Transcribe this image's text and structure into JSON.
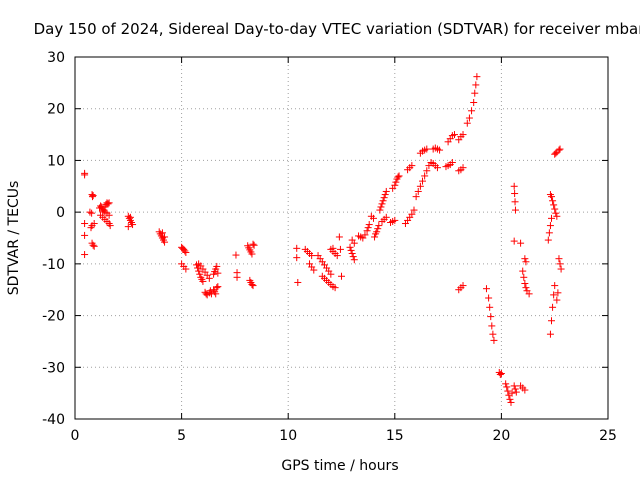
{
  "chart_data": {
    "type": "scatter",
    "title": "Day 150 of 2024, Sidereal Day-to-day VTEC variation (SDTVAR) for receiver mbar",
    "xlabel": "GPS time / hours",
    "ylabel": "SDTVAR / TECUs",
    "xlim": [
      0,
      25
    ],
    "ylim": [
      -40,
      30
    ],
    "xticks": [
      0,
      5,
      10,
      15,
      20,
      25
    ],
    "yticks": [
      -40,
      -30,
      -20,
      -10,
      0,
      10,
      20,
      30
    ],
    "xtick_labels": [
      "0",
      "5",
      "10",
      "15",
      "20",
      "25"
    ],
    "ytick_labels": [
      "-40",
      "-30",
      "-20",
      "-10",
      "0",
      "10",
      "20",
      "30"
    ],
    "grid": true,
    "marker": "plus",
    "color": "#ff0000",
    "series": [
      {
        "name": "SDTVAR",
        "points": [
          [
            0.45,
            7.5
          ],
          [
            0.45,
            7.2
          ],
          [
            0.45,
            -2.2
          ],
          [
            0.45,
            -4.5
          ],
          [
            0.45,
            -8.2
          ],
          [
            0.8,
            3.4
          ],
          [
            0.82,
            3.0
          ],
          [
            0.85,
            3.2
          ],
          [
            0.78,
            -0.2
          ],
          [
            0.7,
            0.0
          ],
          [
            0.75,
            -3.0
          ],
          [
            0.8,
            -2.6
          ],
          [
            0.9,
            -2.2
          ],
          [
            0.8,
            -6.0
          ],
          [
            0.85,
            -6.4
          ],
          [
            0.9,
            -6.6
          ],
          [
            1.15,
            0.8
          ],
          [
            1.2,
            1.2
          ],
          [
            1.25,
            1.0
          ],
          [
            1.3,
            0.6
          ],
          [
            1.35,
            0.4
          ],
          [
            1.4,
            1.0
          ],
          [
            1.45,
            1.5
          ],
          [
            1.5,
            1.8
          ],
          [
            1.55,
            1.6
          ],
          [
            1.6,
            1.8
          ],
          [
            1.2,
            -0.6
          ],
          [
            1.3,
            -1.0
          ],
          [
            1.4,
            -1.4
          ],
          [
            1.5,
            -1.8
          ],
          [
            1.6,
            -2.2
          ],
          [
            1.65,
            -2.6
          ],
          [
            1.3,
            0.2
          ],
          [
            1.4,
            0.0
          ],
          [
            1.5,
            -0.2
          ],
          [
            1.6,
            -0.6
          ],
          [
            2.5,
            -0.8
          ],
          [
            2.55,
            -1.2
          ],
          [
            2.6,
            -1.6
          ],
          [
            2.65,
            -2.0
          ],
          [
            2.7,
            -2.4
          ],
          [
            2.5,
            -2.8
          ],
          [
            2.6,
            -1.0
          ],
          [
            3.95,
            -3.8
          ],
          [
            4.0,
            -4.2
          ],
          [
            4.05,
            -4.6
          ],
          [
            4.1,
            -5.0
          ],
          [
            4.15,
            -5.4
          ],
          [
            4.2,
            -5.8
          ],
          [
            4.1,
            -4.0
          ],
          [
            4.2,
            -4.8
          ],
          [
            5.0,
            -6.8
          ],
          [
            5.05,
            -7.0
          ],
          [
            5.1,
            -7.2
          ],
          [
            5.15,
            -7.5
          ],
          [
            5.2,
            -7.8
          ],
          [
            5.0,
            -10.0
          ],
          [
            5.1,
            -10.5
          ],
          [
            5.2,
            -11.0
          ],
          [
            5.7,
            -10.2
          ],
          [
            5.75,
            -10.8
          ],
          [
            5.8,
            -11.4
          ],
          [
            5.85,
            -12.0
          ],
          [
            5.9,
            -12.6
          ],
          [
            5.95,
            -13.0
          ],
          [
            6.0,
            -13.4
          ],
          [
            5.8,
            -10.0
          ],
          [
            5.9,
            -10.4
          ],
          [
            6.0,
            -11.0
          ],
          [
            6.1,
            -11.6
          ],
          [
            6.2,
            -12.2
          ],
          [
            6.3,
            -12.8
          ],
          [
            6.1,
            -15.5
          ],
          [
            6.15,
            -15.8
          ],
          [
            6.2,
            -16.0
          ],
          [
            6.3,
            -15.6
          ],
          [
            6.35,
            -15.2
          ],
          [
            6.4,
            -15.8
          ],
          [
            6.5,
            -12.0
          ],
          [
            6.55,
            -11.5
          ],
          [
            6.6,
            -11.0
          ],
          [
            6.65,
            -10.5
          ],
          [
            6.7,
            -11.8
          ],
          [
            6.5,
            -15.0
          ],
          [
            6.55,
            -15.4
          ],
          [
            6.6,
            -15.8
          ],
          [
            6.65,
            -14.6
          ],
          [
            6.7,
            -14.4
          ],
          [
            7.55,
            -8.3
          ],
          [
            7.6,
            -11.7
          ],
          [
            7.6,
            -12.6
          ],
          [
            8.1,
            -6.5
          ],
          [
            8.15,
            -6.9
          ],
          [
            8.2,
            -7.3
          ],
          [
            8.25,
            -7.7
          ],
          [
            8.3,
            -8.1
          ],
          [
            8.35,
            -6.2
          ],
          [
            8.4,
            -6.4
          ],
          [
            8.2,
            -13.2
          ],
          [
            8.25,
            -13.6
          ],
          [
            8.3,
            -14.0
          ],
          [
            8.35,
            -14.2
          ],
          [
            10.4,
            -7.0
          ],
          [
            10.4,
            -8.8
          ],
          [
            10.45,
            -13.6
          ],
          [
            10.8,
            -7.2
          ],
          [
            10.9,
            -7.6
          ],
          [
            11.0,
            -8.0
          ],
          [
            11.1,
            -8.4
          ],
          [
            11.0,
            -10.0
          ],
          [
            11.1,
            -10.6
          ],
          [
            11.2,
            -11.2
          ],
          [
            11.4,
            -8.4
          ],
          [
            11.5,
            -9.0
          ],
          [
            11.6,
            -9.6
          ],
          [
            11.7,
            -10.2
          ],
          [
            11.8,
            -10.8
          ],
          [
            11.9,
            -11.4
          ],
          [
            12.0,
            -12.0
          ],
          [
            11.6,
            -12.4
          ],
          [
            11.7,
            -12.8
          ],
          [
            11.8,
            -13.2
          ],
          [
            11.9,
            -13.6
          ],
          [
            12.0,
            -14.0
          ],
          [
            12.1,
            -14.4
          ],
          [
            12.2,
            -14.6
          ],
          [
            12.0,
            -7.2
          ],
          [
            12.1,
            -7.6
          ],
          [
            12.2,
            -8.0
          ],
          [
            12.3,
            -8.4
          ],
          [
            12.1,
            -7.0
          ],
          [
            12.4,
            -4.8
          ],
          [
            12.45,
            -7.2
          ],
          [
            12.5,
            -12.4
          ],
          [
            12.9,
            -6.8
          ],
          [
            12.95,
            -7.4
          ],
          [
            13.0,
            -8.0
          ],
          [
            13.05,
            -8.6
          ],
          [
            13.1,
            -9.2
          ],
          [
            13.0,
            -5.4
          ],
          [
            13.1,
            -6.0
          ],
          [
            13.3,
            -4.6
          ],
          [
            13.4,
            -4.8
          ],
          [
            13.5,
            -5.0
          ],
          [
            13.6,
            -4.4
          ],
          [
            13.7,
            -3.6
          ],
          [
            13.75,
            -3.0
          ],
          [
            13.8,
            -2.4
          ],
          [
            13.9,
            -0.8
          ],
          [
            14.0,
            -1.2
          ],
          [
            14.05,
            -4.8
          ],
          [
            14.1,
            -4.2
          ],
          [
            14.15,
            -3.8
          ],
          [
            14.2,
            -3.2
          ],
          [
            14.25,
            -2.6
          ],
          [
            14.3,
            0.4
          ],
          [
            14.35,
            1.0
          ],
          [
            14.4,
            1.6
          ],
          [
            14.45,
            2.2
          ],
          [
            14.5,
            2.8
          ],
          [
            14.55,
            3.4
          ],
          [
            14.6,
            4.0
          ],
          [
            14.4,
            -1.8
          ],
          [
            14.5,
            -1.4
          ],
          [
            14.6,
            -1.0
          ],
          [
            14.9,
            4.6
          ],
          [
            15.0,
            5.2
          ],
          [
            15.05,
            5.8
          ],
          [
            15.1,
            6.4
          ],
          [
            15.15,
            6.8
          ],
          [
            15.2,
            7.0
          ],
          [
            14.8,
            -2.0
          ],
          [
            14.9,
            -1.8
          ],
          [
            15.0,
            -1.6
          ],
          [
            15.5,
            -2.2
          ],
          [
            15.6,
            -1.6
          ],
          [
            15.7,
            -1.0
          ],
          [
            15.8,
            -0.4
          ],
          [
            15.9,
            0.4
          ],
          [
            15.6,
            8.2
          ],
          [
            15.7,
            8.6
          ],
          [
            15.8,
            9.0
          ],
          [
            16.0,
            3.0
          ],
          [
            16.1,
            4.0
          ],
          [
            16.2,
            5.0
          ],
          [
            16.3,
            6.0
          ],
          [
            16.4,
            7.0
          ],
          [
            16.5,
            8.0
          ],
          [
            16.6,
            9.0
          ],
          [
            16.2,
            11.4
          ],
          [
            16.3,
            11.8
          ],
          [
            16.4,
            12.0
          ],
          [
            16.5,
            12.2
          ],
          [
            16.7,
            9.6
          ],
          [
            16.8,
            9.4
          ],
          [
            16.9,
            9.0
          ],
          [
            17.0,
            8.6
          ],
          [
            16.8,
            12.2
          ],
          [
            16.9,
            12.4
          ],
          [
            17.0,
            12.2
          ],
          [
            17.1,
            12.0
          ],
          [
            17.4,
            8.8
          ],
          [
            17.5,
            9.0
          ],
          [
            17.6,
            9.2
          ],
          [
            17.7,
            9.6
          ],
          [
            17.5,
            13.6
          ],
          [
            17.6,
            14.2
          ],
          [
            17.7,
            14.8
          ],
          [
            17.8,
            15.0
          ],
          [
            18.0,
            14.0
          ],
          [
            18.1,
            14.6
          ],
          [
            18.2,
            15.0
          ],
          [
            18.0,
            8.0
          ],
          [
            18.1,
            8.2
          ],
          [
            18.2,
            8.6
          ],
          [
            18.0,
            -15.0
          ],
          [
            18.1,
            -14.6
          ],
          [
            18.2,
            -14.2
          ],
          [
            18.4,
            17.2
          ],
          [
            18.5,
            18.2
          ],
          [
            18.6,
            19.6
          ],
          [
            18.7,
            21.2
          ],
          [
            18.75,
            23.0
          ],
          [
            18.8,
            24.6
          ],
          [
            18.85,
            26.2
          ],
          [
            19.3,
            -14.8
          ],
          [
            19.4,
            -16.6
          ],
          [
            19.45,
            -18.4
          ],
          [
            19.5,
            -20.2
          ],
          [
            19.55,
            -22.0
          ],
          [
            19.6,
            -23.6
          ],
          [
            19.65,
            -24.8
          ],
          [
            19.9,
            -31.0
          ],
          [
            19.95,
            -31.4
          ],
          [
            20.0,
            -31.2
          ],
          [
            20.2,
            -33.2
          ],
          [
            20.25,
            -33.8
          ],
          [
            20.3,
            -34.6
          ],
          [
            20.35,
            -35.4
          ],
          [
            20.4,
            -36.2
          ],
          [
            20.45,
            -36.8
          ],
          [
            20.5,
            -35.0
          ],
          [
            20.6,
            -33.6
          ],
          [
            20.65,
            -34.2
          ],
          [
            20.7,
            -34.8
          ],
          [
            20.9,
            -33.6
          ],
          [
            21.0,
            -34.0
          ],
          [
            21.1,
            -34.4
          ],
          [
            20.6,
            5.0
          ],
          [
            20.62,
            3.6
          ],
          [
            20.64,
            2.0
          ],
          [
            20.66,
            0.4
          ],
          [
            20.6,
            -5.6
          ],
          [
            20.9,
            -6.0
          ],
          [
            21.0,
            -11.4
          ],
          [
            21.05,
            -12.6
          ],
          [
            21.1,
            -13.8
          ],
          [
            21.15,
            -14.6
          ],
          [
            21.2,
            -15.2
          ],
          [
            21.3,
            -15.8
          ],
          [
            21.1,
            -9.0
          ],
          [
            21.15,
            -9.6
          ],
          [
            22.2,
            -5.4
          ],
          [
            22.25,
            -4.0
          ],
          [
            22.3,
            -2.6
          ],
          [
            22.35,
            -1.2
          ],
          [
            22.3,
            -23.6
          ],
          [
            22.35,
            -21.0
          ],
          [
            22.4,
            -18.4
          ],
          [
            22.45,
            -16.0
          ],
          [
            22.5,
            -14.2
          ],
          [
            22.6,
            -17.0
          ],
          [
            22.65,
            -15.6
          ],
          [
            22.3,
            3.4
          ],
          [
            22.35,
            3.0
          ],
          [
            22.4,
            2.2
          ],
          [
            22.45,
            1.4
          ],
          [
            22.5,
            0.6
          ],
          [
            22.55,
            -0.2
          ],
          [
            22.6,
            -0.8
          ],
          [
            22.5,
            11.2
          ],
          [
            22.55,
            11.4
          ],
          [
            22.6,
            11.6
          ],
          [
            22.7,
            12.0
          ],
          [
            22.75,
            12.2
          ],
          [
            22.7,
            -9.0
          ],
          [
            22.75,
            -10.0
          ],
          [
            22.8,
            -11.0
          ]
        ]
      }
    ]
  }
}
